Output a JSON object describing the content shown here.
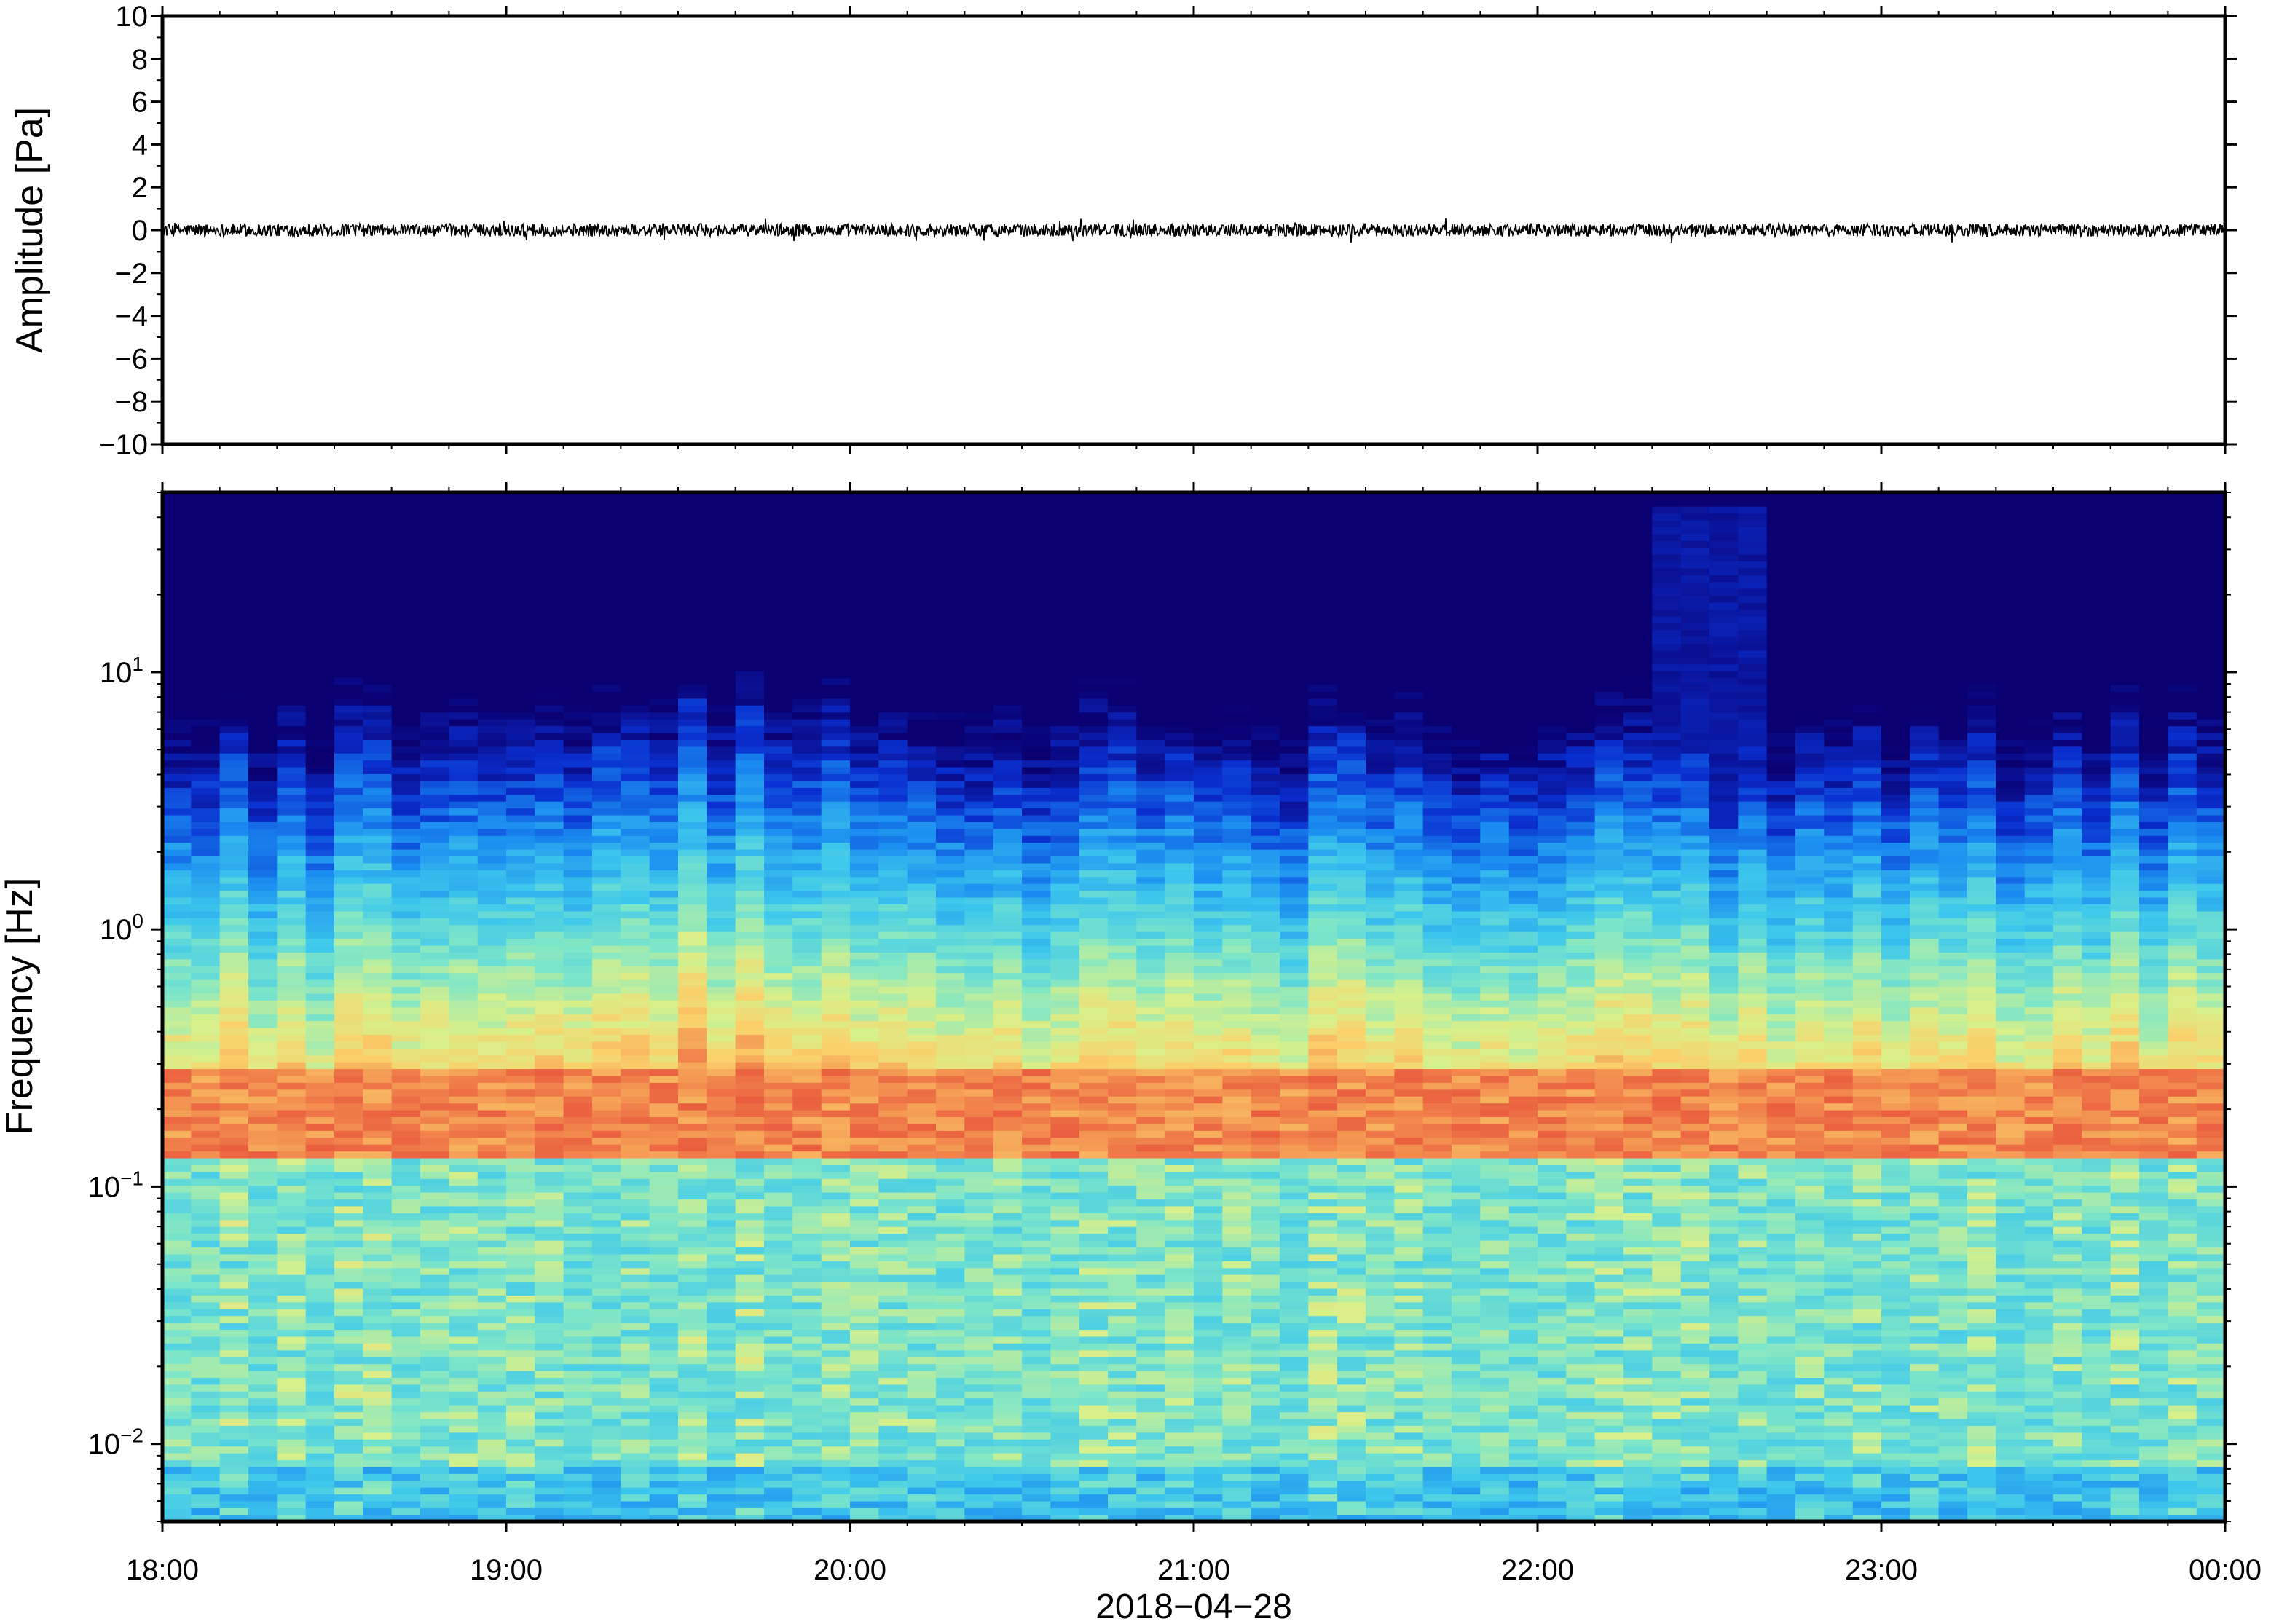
{
  "chart_data": [
    {
      "type": "line",
      "panel": "waveform",
      "ylabel": "Amplitude [Pa]",
      "ylim": [
        -10,
        10
      ],
      "yticks": [
        10,
        8,
        6,
        4,
        2,
        0,
        -2,
        -4,
        -6,
        -8,
        -10
      ],
      "ytick_labels": [
        "10",
        "8",
        "6",
        "4",
        "2",
        "0",
        "−2",
        "−4",
        "−6",
        "−8",
        "−10"
      ],
      "series": [
        {
          "color": "#000000",
          "baseline": 0,
          "typical_amplitude": 0.3,
          "max_amplitude": 0.6
        }
      ]
    },
    {
      "type": "heatmap",
      "panel": "spectrogram",
      "ylabel": "Frequency [Hz]",
      "yscale": "log",
      "ylim": [
        0.005,
        50
      ],
      "yticks": [
        10,
        1,
        0.1,
        0.01
      ],
      "ytick_labels": [
        {
          "base": "10",
          "exp": "1"
        },
        {
          "base": "10",
          "exp": "0"
        },
        {
          "base": "10",
          "exp": "−1"
        },
        {
          "base": "10",
          "exp": "−2"
        }
      ],
      "colormap": [
        "#0a0072",
        "#0a2fd0",
        "#1a8cf0",
        "#3ec8ec",
        "#7ee6c8",
        "#d8f08a",
        "#fbd06a",
        "#f28a4e",
        "#e8563c"
      ],
      "microseism_peak_hz": [
        0.13,
        0.28
      ],
      "broadband_bursts": [
        {
          "start": "22:17",
          "end": "22:37",
          "max_hz": 45
        }
      ]
    }
  ],
  "xaxis": {
    "ticks": [
      "18:00",
      "19:00",
      "20:00",
      "21:00",
      "22:00",
      "23:00",
      "00:00"
    ],
    "date": "2018−04−28"
  }
}
